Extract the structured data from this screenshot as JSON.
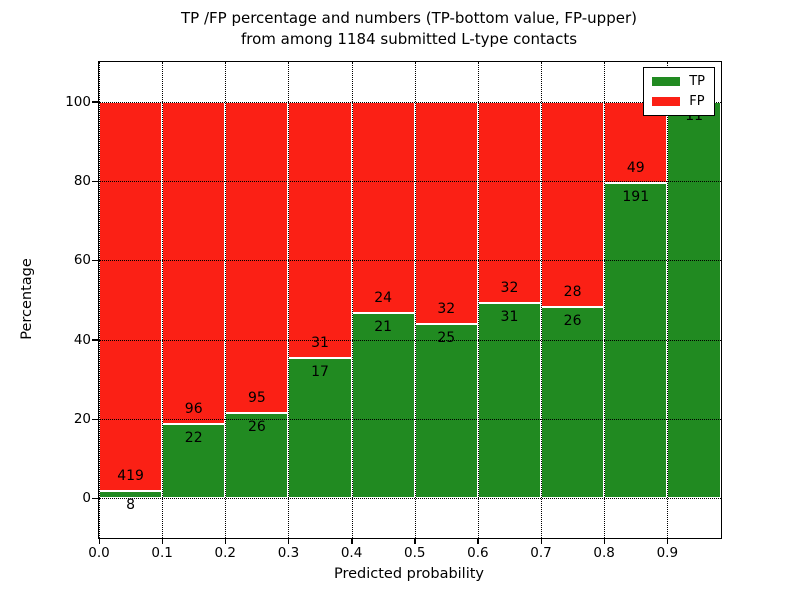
{
  "title": {
    "line1": "TP /FP percentage and numbers (TP-bottom value, FP-upper)",
    "line2": "from among 1184 submitted L-type contacts"
  },
  "axes": {
    "xlabel": "Predicted probability",
    "ylabel": "Percentage",
    "xtick_labels": [
      "0.0",
      "0.1",
      "0.2",
      "0.3",
      "0.4",
      "0.5",
      "0.6",
      "0.7",
      "0.8",
      "0.9"
    ],
    "xtick_values": [
      0.0,
      0.1,
      0.2,
      0.3,
      0.4,
      0.5,
      0.6,
      0.7,
      0.8,
      0.9
    ],
    "ytick_labels": [
      "0",
      "20",
      "40",
      "60",
      "80",
      "100"
    ],
    "ytick_values": [
      0,
      20,
      40,
      60,
      80,
      100
    ]
  },
  "legend": {
    "entries": [
      {
        "label": "TP",
        "color": "#218a21"
      },
      {
        "label": "FP",
        "color": "#fb2015"
      }
    ]
  },
  "chart_data": {
    "type": "bar",
    "stacked": true,
    "normalized_to_percent": true,
    "title": "TP /FP percentage and numbers (TP-bottom value, FP-upper) from among 1184 submitted L-type contacts",
    "xlabel": "Predicted probability",
    "ylabel": "Percentage",
    "total_contacts": 1184,
    "bin_width": 0.1,
    "categories": [
      "0.0-0.1",
      "0.1-0.2",
      "0.2-0.3",
      "0.3-0.4",
      "0.4-0.5",
      "0.5-0.6",
      "0.6-0.7",
      "0.7-0.8",
      "0.8-0.9",
      "0.9-1.0"
    ],
    "series": [
      {
        "name": "TP",
        "color": "#218a21",
        "values": [
          8,
          22,
          26,
          17,
          21,
          25,
          31,
          26,
          191,
          11
        ]
      },
      {
        "name": "FP",
        "color": "#fb2015",
        "values": [
          419,
          96,
          95,
          31,
          24,
          32,
          32,
          28,
          49,
          0
        ]
      }
    ],
    "tp_percent": [
      1.9,
      18.6,
      21.5,
      35.4,
      46.7,
      43.9,
      49.2,
      48.1,
      79.6,
      100.0
    ],
    "bins": [
      {
        "range": [
          0.0,
          0.1
        ],
        "tp": 8,
        "fp": 419
      },
      {
        "range": [
          0.1,
          0.2
        ],
        "tp": 22,
        "fp": 96
      },
      {
        "range": [
          0.2,
          0.3
        ],
        "tp": 26,
        "fp": 95
      },
      {
        "range": [
          0.3,
          0.4
        ],
        "tp": 17,
        "fp": 31
      },
      {
        "range": [
          0.4,
          0.5
        ],
        "tp": 21,
        "fp": 24
      },
      {
        "range": [
          0.5,
          0.6
        ],
        "tp": 25,
        "fp": 32
      },
      {
        "range": [
          0.6,
          0.7
        ],
        "tp": 31,
        "fp": 32
      },
      {
        "range": [
          0.7,
          0.8
        ],
        "tp": 26,
        "fp": 28
      },
      {
        "range": [
          0.8,
          0.9
        ],
        "tp": 191,
        "fp": 49
      },
      {
        "range": [
          0.9,
          1.0
        ],
        "tp": 11,
        "fp": 0
      }
    ],
    "xlim": [
      0,
      0.985
    ],
    "ylim": [
      -10,
      110
    ],
    "grid": "dotted",
    "legend_position": "upper right",
    "colors": {
      "tp": "#218a21",
      "fp": "#fb2015",
      "bar_edge": "#ffffff",
      "grid": "#000000"
    }
  }
}
